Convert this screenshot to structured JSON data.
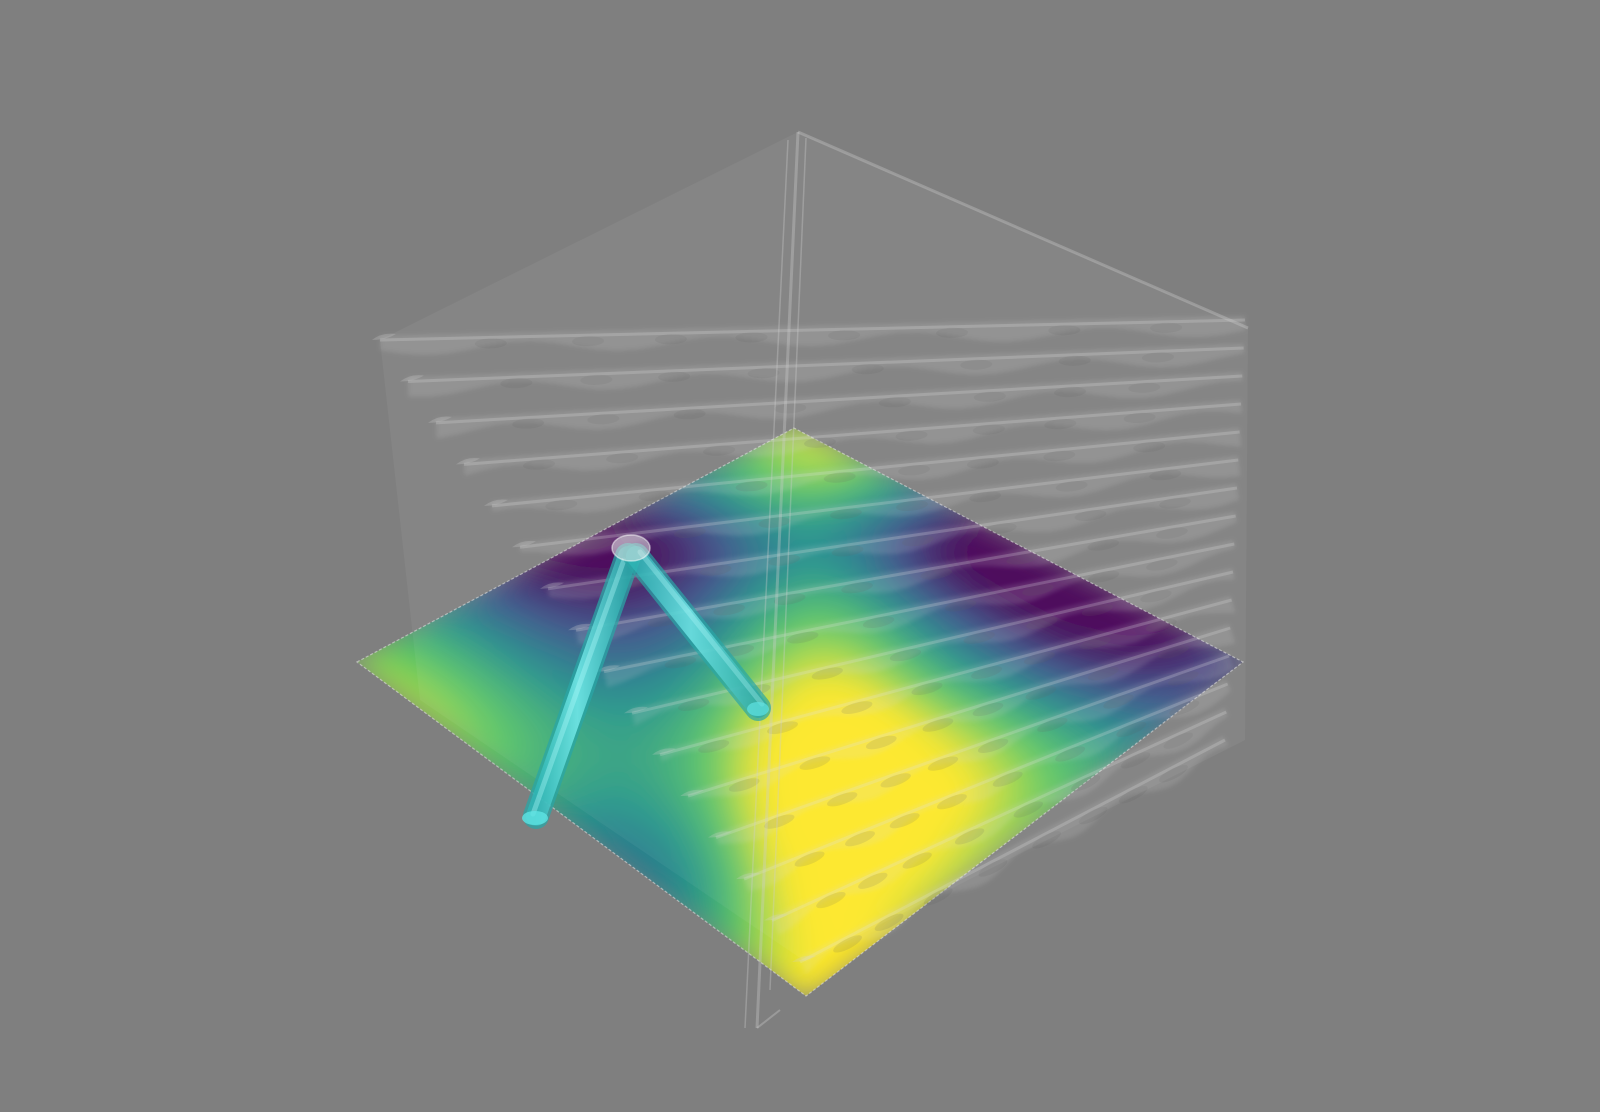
{
  "scene": {
    "background": "#7f7f7f",
    "colormap": [
      "#440154",
      "#3b528b",
      "#21918c",
      "#5ec962",
      "#fde725"
    ],
    "surface_color": "#d8d8d8",
    "tube_color": "#40d6d6",
    "surface_layers": 16,
    "field_grid": 24
  }
}
